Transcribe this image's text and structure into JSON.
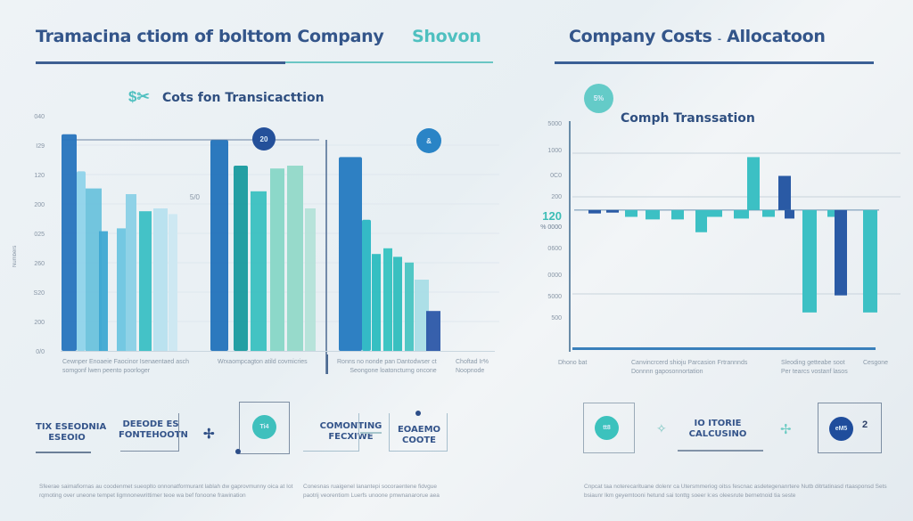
{
  "left_panel": {
    "title": "Tramacina ctiom of bolttom Company",
    "title_accent": "Shovon",
    "subtitle": "Cots fon Transicacttion",
    "subtitle_icon": "dollar-scissors-icon",
    "badges": [
      "20",
      "&"
    ],
    "side_label": "5/0",
    "vertical_axis_label": "Numbers",
    "captions": [
      {
        "line1": "Cewnper Enoaeie Faocinor Isenaentaed asch",
        "line2": "somgonf lwen peento poorloger"
      },
      {
        "line1": "Wrxaompcagton atild covmicries",
        "line2": ""
      },
      {
        "line1": "Ronns no nonde pan Dantodwser ct",
        "line2": "Seongone loatoncturng oncone"
      },
      {
        "line1": "Choftad Ir%",
        "line2": "Noopnode"
      }
    ]
  },
  "right_panel": {
    "title": "Company Costs",
    "title_sep": "-",
    "title_accent": "Allocatoon",
    "subtitle": "Comph Transsation",
    "badge": "5%",
    "highlight_value": "120",
    "highlight_sub": "% 0000",
    "captions": [
      {
        "line1": "Dhono bat",
        "line2": ""
      },
      {
        "line1": "Canvincrcerd shioju Parcasion Frtrannnds",
        "line2": "Donnnn gaposonnortation"
      },
      {
        "line1": "Sleoding getteabe soot",
        "line2": "Per tearcs vostanf lasos"
      },
      {
        "line1": "Cesgone",
        "line2": ""
      }
    ]
  },
  "bottom_left": {
    "card1": {
      "line1": "TIX ESEODNIA",
      "line2": "ESEOIO"
    },
    "card2": {
      "line1": "DEEODE ES",
      "line2": "FONTEHOOTN"
    },
    "plus_icon": "plus-icon",
    "card3_badge": "Ti4",
    "card4": {
      "line1": "COMONTING",
      "line2": "FECXIWE"
    },
    "card5": {
      "line1": "EOAEMO",
      "line2": "COOTE"
    },
    "paragraph1": {
      "line1": "Sfeerae saimafiornas au coodenmet sueoplto onnonatformurant lablah dw gaprovmunny oica at Iot",
      "line2": "rqmoting over uneone tempet ligmnonewrittimer teoe wa bef fonoone frawination"
    },
    "paragraph2": {
      "line1": "Conesnas ruaigenel lanantepi socoraentene fidvgue",
      "line2": "paotrij veorentiom Luerfs unoone pmwnanarorue aea"
    }
  },
  "bottom_right": {
    "card1_badge": "tt8",
    "card2": {
      "line1": "IO ITORIE",
      "line2": "CALCUSINO"
    },
    "card3_badge": "eM5",
    "card3_value": "2",
    "paragraph": {
      "line1": "Cnpcat taa noterecarituane dolenr ca Utersmmeriog oitss fescnac asdetegenanrtere Nutb ditrtatinasd rtaasponsd Sets",
      "line2": "bsiaunr lkm geyemtooni hetund sai tonttg soeer k:es oleesrute bernetnoid tia seste"
    }
  },
  "colors": {
    "navy": "#2c5599",
    "blue": "#2277c0",
    "teal": "#3fbdbd",
    "mint": "#7fd4c4",
    "light_blue": "#8fd0e8",
    "background": "#eef3f6"
  },
  "chart_data": [
    {
      "type": "bar",
      "title": "Cots fon Transicacttion",
      "xlabel": "",
      "ylabel": "Numbers",
      "y_tick_labels": [
        "040",
        "I29",
        "120",
        "200",
        "025",
        "260",
        "S20",
        "200",
        "0/0"
      ],
      "ylim": [
        0,
        8
      ],
      "grid": true,
      "groups": [
        {
          "name": "Group A",
          "bars": [
            {
              "value": 7.6,
              "color": "#2774bd"
            },
            {
              "value": 6.3,
              "color": "#8fd3ea"
            },
            {
              "value": 5.7,
              "color": "#6cc2dc"
            },
            {
              "value": 4.2,
              "color": "#3ea8d2"
            },
            {
              "value": 4.3,
              "color": "#6ec5e0"
            },
            {
              "value": 5.5,
              "color": "#8ad0e6"
            },
            {
              "value": 4.9,
              "color": "#3bbfc4"
            },
            {
              "value": 5.0,
              "color": "#b7e0ee"
            },
            {
              "value": 4.8,
              "color": "#cce7f1"
            }
          ]
        },
        {
          "name": "Group B",
          "bars": [
            {
              "value": 7.4,
              "color": "#2272ba"
            },
            {
              "value": 6.5,
              "color": "#189a9e"
            },
            {
              "value": 5.6,
              "color": "#3ac0c0"
            },
            {
              "value": 6.4,
              "color": "#87d6c6"
            },
            {
              "value": 6.5,
              "color": "#92d8c8"
            },
            {
              "value": 5.0,
              "color": "#b4e2d8"
            }
          ]
        },
        {
          "name": "Group C",
          "bars": [
            {
              "value": 6.8,
              "color": "#2479c0"
            },
            {
              "value": 4.6,
              "color": "#2ab6c3"
            },
            {
              "value": 3.4,
              "color": "#2bbcbf"
            },
            {
              "value": 3.6,
              "color": "#35c2c0"
            },
            {
              "value": 3.3,
              "color": "#2fbdbd"
            },
            {
              "value": 3.1,
              "color": "#49c4c2"
            },
            {
              "value": 2.5,
              "color": "#a9dde6"
            },
            {
              "value": 1.4,
              "color": "#2c57a8"
            }
          ]
        }
      ]
    },
    {
      "type": "bar",
      "title": "Comph Transsation",
      "xlabel": "",
      "ylabel": "",
      "y_tick_labels": [
        "5000",
        "1000",
        "0C0",
        "200",
        "0600",
        "0000",
        "5000",
        "500"
      ],
      "ylim": [
        -7,
        5
      ],
      "baseline": 0,
      "grid": true,
      "series": [
        {
          "name": "Navy",
          "color": "#2a5aa5"
        },
        {
          "name": "Teal",
          "color": "#3cc0c4"
        }
      ],
      "bars": [
        {
          "value": -0.2,
          "series": "Navy"
        },
        {
          "value": -0.15,
          "series": "Navy"
        },
        {
          "value": -0.4,
          "series": "Teal"
        },
        {
          "value": -0.55,
          "series": "Teal"
        },
        {
          "value": -0.55,
          "series": "Teal"
        },
        {
          "value": -1.3,
          "series": "Teal"
        },
        {
          "value": -0.4,
          "series": "Teal"
        },
        {
          "value": -0.5,
          "series": "Teal"
        },
        {
          "value": 3.1,
          "series": "Teal"
        },
        {
          "value": -0.4,
          "series": "Teal"
        },
        {
          "value": 2.0,
          "series": "Navy"
        },
        {
          "value": -0.5,
          "series": "Navy"
        },
        {
          "value": -6.0,
          "series": "Teal"
        },
        {
          "value": -0.4,
          "series": "Teal"
        },
        {
          "value": -5.0,
          "series": "Navy"
        },
        {
          "value": -6.0,
          "series": "Teal"
        }
      ]
    }
  ]
}
